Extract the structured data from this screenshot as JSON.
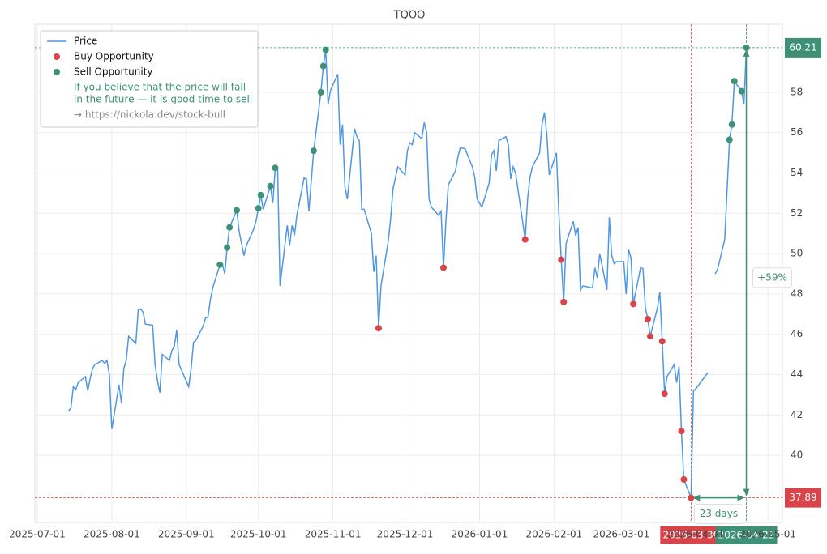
{
  "chart_data": {
    "type": "line",
    "title": "TQQQ",
    "x": [
      "2025-07-14",
      "2025-07-15",
      "2025-07-16",
      "2025-07-17",
      "2025-07-18",
      "2025-07-21",
      "2025-07-22",
      "2025-07-23",
      "2025-07-24",
      "2025-07-25",
      "2025-07-28",
      "2025-07-29",
      "2025-07-30",
      "2025-07-31",
      "2025-08-01",
      "2025-08-04",
      "2025-08-05",
      "2025-08-06",
      "2025-08-07",
      "2025-08-08",
      "2025-08-11",
      "2025-08-12",
      "2025-08-13",
      "2025-08-14",
      "2025-08-15",
      "2025-08-18",
      "2025-08-19",
      "2025-08-20",
      "2025-08-21",
      "2025-08-22",
      "2025-08-25",
      "2025-08-26",
      "2025-08-27",
      "2025-08-28",
      "2025-08-29",
      "2025-09-02",
      "2025-09-03",
      "2025-09-04",
      "2025-09-05",
      "2025-09-08",
      "2025-09-09",
      "2025-09-10",
      "2025-09-11",
      "2025-09-12",
      "2025-09-15",
      "2025-09-16",
      "2025-09-17",
      "2025-09-18",
      "2025-09-19",
      "2025-09-22",
      "2025-09-23",
      "2025-09-24",
      "2025-09-25",
      "2025-09-26",
      "2025-09-29",
      "2025-09-30",
      "2025-10-01",
      "2025-10-02",
      "2025-10-03",
      "2025-10-06",
      "2025-10-07",
      "2025-10-08",
      "2025-10-09",
      "2025-10-10",
      "2025-10-13",
      "2025-10-14",
      "2025-10-15",
      "2025-10-16",
      "2025-10-17",
      "2025-10-20",
      "2025-10-21",
      "2025-10-22",
      "2025-10-23",
      "2025-10-24",
      "2025-10-27",
      "2025-10-28",
      "2025-10-29",
      "2025-10-30",
      "2025-10-31",
      "2025-11-03",
      "2025-11-04",
      "2025-11-05",
      "2025-11-06",
      "2025-11-07",
      "2025-11-10",
      "2025-11-11",
      "2025-11-12",
      "2025-11-13",
      "2025-11-14",
      "2025-11-17",
      "2025-11-18",
      "2025-11-19",
      "2025-11-20",
      "2025-11-21",
      "2025-11-24",
      "2025-11-25",
      "2025-11-26",
      "2025-11-28",
      "2025-12-01",
      "2025-12-02",
      "2025-12-03",
      "2025-12-04",
      "2025-12-05",
      "2025-12-08",
      "2025-12-09",
      "2025-12-10",
      "2025-12-11",
      "2025-12-12",
      "2025-12-15",
      "2025-12-16",
      "2025-12-17",
      "2025-12-18",
      "2025-12-19",
      "2025-12-22",
      "2025-12-23",
      "2025-12-24",
      "2025-12-26",
      "2025-12-29",
      "2025-12-30",
      "2025-12-31",
      "2026-01-02",
      "2026-01-05",
      "2026-01-06",
      "2026-01-07",
      "2026-01-08",
      "2026-01-09",
      "2026-01-12",
      "2026-01-13",
      "2026-01-14",
      "2026-01-15",
      "2026-01-16",
      "2026-01-20",
      "2026-01-21",
      "2026-01-22",
      "2026-01-23",
      "2026-01-26",
      "2026-01-27",
      "2026-01-28",
      "2026-01-29",
      "2026-01-30",
      "2026-02-02",
      "2026-02-03",
      "2026-02-04",
      "2026-02-05",
      "2026-02-06",
      "2026-02-09",
      "2026-02-10",
      "2026-02-11",
      "2026-02-12",
      "2026-02-13",
      "2026-02-17",
      "2026-02-18",
      "2026-02-19",
      "2026-02-20",
      "2026-02-23",
      "2026-02-24",
      "2026-02-25",
      "2026-02-26",
      "2026-02-27",
      "2026-03-02",
      "2026-03-03",
      "2026-03-04",
      "2026-03-05",
      "2026-03-06",
      "2026-03-09",
      "2026-03-10",
      "2026-03-11",
      "2026-03-12",
      "2026-03-13",
      "2026-03-16",
      "2026-03-17",
      "2026-03-18",
      "2026-03-19",
      "2026-03-20",
      "2026-03-23",
      "2026-03-24",
      "2026-03-25",
      "2026-03-26",
      "2026-03-27",
      "2026-03-30",
      "2026-03-31",
      "2026-04-01",
      "2026-04-06",
      "2026-04-07",
      "2026-04-09",
      "2026-04-10",
      "2026-04-13",
      "2026-04-15",
      "2026-04-16",
      "2026-04-17",
      "2026-04-20",
      "2026-04-21",
      "2026-04-22"
    ],
    "series": [
      {
        "name": "Price",
        "color": "#4f97e3",
        "values": [
          42.17,
          42.35,
          43.4,
          43.25,
          43.6,
          43.9,
          43.2,
          43.8,
          44.3,
          44.5,
          44.7,
          44.55,
          44.7,
          44.0,
          41.3,
          43.5,
          42.6,
          44.3,
          44.7,
          45.9,
          45.55,
          47.2,
          47.25,
          47.1,
          46.5,
          46.45,
          44.5,
          43.7,
          43.1,
          45.0,
          44.7,
          45.2,
          45.4,
          46.2,
          44.5,
          43.4,
          44.3,
          45.6,
          45.7,
          46.4,
          46.8,
          46.85,
          47.7,
          48.3,
          49.45,
          49.5,
          49.0,
          50.3,
          51.3,
          52.15,
          51.1,
          50.5,
          49.9,
          50.4,
          51.2,
          51.6,
          52.25,
          52.9,
          52.2,
          53.35,
          52.5,
          54.25,
          54.2,
          48.4,
          51.4,
          50.4,
          51.4,
          50.9,
          51.9,
          53.75,
          53.7,
          52.1,
          53.6,
          55.1,
          58.0,
          59.3,
          60.1,
          57.4,
          58.1,
          58.9,
          55.4,
          56.4,
          53.3,
          52.7,
          56.2,
          55.8,
          55.6,
          52.2,
          52.2,
          51.0,
          49.1,
          49.9,
          46.3,
          48.4,
          50.6,
          51.7,
          53.2,
          54.3,
          53.9,
          55.1,
          55.5,
          55.4,
          56.0,
          55.7,
          56.5,
          56.0,
          52.7,
          52.3,
          51.9,
          52.1,
          49.3,
          51.6,
          53.4,
          54.1,
          54.8,
          55.25,
          55.2,
          54.3,
          53.8,
          52.7,
          52.3,
          53.5,
          54.9,
          55.1,
          54.1,
          55.6,
          55.8,
          55.4,
          53.7,
          54.3,
          54.0,
          50.7,
          52.7,
          53.8,
          54.3,
          55.0,
          56.4,
          57.0,
          55.9,
          53.9,
          55.0,
          52.0,
          49.7,
          47.6,
          50.5,
          51.6,
          50.9,
          51.3,
          48.2,
          48.4,
          48.3,
          49.3,
          48.8,
          50.0,
          48.2,
          51.8,
          49.9,
          49.5,
          49.6,
          49.6,
          48.0,
          50.2,
          49.8,
          47.5,
          49.3,
          49.25,
          47.3,
          46.75,
          45.9,
          47.3,
          48.1,
          45.65,
          43.05,
          43.9,
          44.5,
          43.6,
          44.4,
          41.2,
          38.8,
          37.89,
          43.2,
          43.3,
          44.1,
          null,
          49.0,
          49.2,
          50.7,
          55.65,
          56.4,
          58.55,
          58.05,
          57.4,
          60.21
        ]
      },
      {
        "name": "Buy Opportunity",
        "color": "#d9434a",
        "x": [
          "2025-11-20",
          "2025-12-17",
          "2026-01-20",
          "2026-02-04",
          "2026-02-05",
          "2026-03-06",
          "2026-03-12",
          "2026-03-13",
          "2026-03-18",
          "2026-03-19",
          "2026-03-26",
          "2026-03-27",
          "2026-03-30"
        ],
        "values": [
          46.3,
          49.3,
          50.7,
          49.7,
          47.6,
          47.5,
          46.75,
          45.9,
          45.65,
          43.05,
          41.2,
          38.8,
          37.89
        ]
      },
      {
        "name": "Sell Opportunity",
        "color": "#3d9177",
        "x": [
          "2025-09-15",
          "2025-09-18",
          "2025-09-19",
          "2025-09-22",
          "2025-10-01",
          "2025-10-02",
          "2025-10-06",
          "2025-10-08",
          "2025-10-24",
          "2025-10-27",
          "2025-10-28",
          "2025-10-29",
          "2026-04-15",
          "2026-04-16",
          "2026-04-17",
          "2026-04-20",
          "2026-04-22"
        ],
        "values": [
          49.45,
          50.3,
          51.3,
          52.15,
          52.25,
          52.9,
          53.35,
          54.25,
          55.1,
          58.0,
          59.3,
          60.1,
          55.65,
          56.4,
          58.55,
          58.05,
          60.21
        ]
      }
    ],
    "legend_note": [
      "If you believe that the price will fall",
      "in the future — it is good time to sell"
    ],
    "legend_link": "→ https://nickola.dev/stock-bull",
    "legend_position": "upper left",
    "xlim": [
      "2025-06-30",
      "2026-05-07"
    ],
    "xticks": [
      "2025-07-01",
      "2025-08-01",
      "2025-09-01",
      "2025-10-01",
      "2025-11-01",
      "2025-12-01",
      "2026-01-01",
      "2026-02-01",
      "2026-03-01",
      "2026-04-01",
      "2026-05-01"
    ],
    "ylim": [
      36.67,
      61.37
    ],
    "yticks": [
      40,
      42,
      44,
      46,
      48,
      50,
      52,
      54,
      56,
      58
    ],
    "y_axis_side": "right",
    "grid": true,
    "annotations": {
      "high": {
        "value": 60.21,
        "date": "2026-04-22"
      },
      "low": {
        "value": 37.89,
        "date": "2026-03-30"
      },
      "change_label": "+59%",
      "duration_label": "23 days"
    }
  }
}
